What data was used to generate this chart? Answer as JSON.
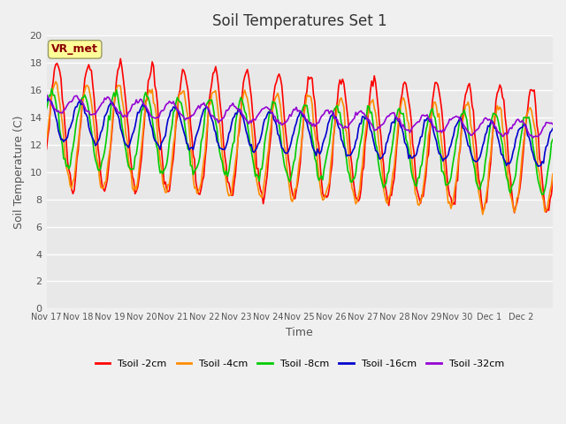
{
  "title": "Soil Temperatures Set 1",
  "xlabel": "Time",
  "ylabel": "Soil Temperature (C)",
  "ylim": [
    0,
    20
  ],
  "yticks": [
    0,
    2,
    4,
    6,
    8,
    10,
    12,
    14,
    16,
    18,
    20
  ],
  "x_labels": [
    "Nov 17",
    "Nov 18",
    "Nov 19",
    "Nov 20",
    "Nov 21",
    "Nov 22",
    "Nov 23",
    "Nov 24",
    "Nov 25",
    "Nov 26",
    "Nov 27",
    "Nov 28",
    "Nov 29",
    "Nov 30",
    "Dec 1",
    "Dec 2"
  ],
  "annotation_text": "VR_met",
  "annotation_color": "#8B0000",
  "annotation_bg": "#FFFF99",
  "plot_bg_color": "#E8E8E8",
  "fig_bg_color": "#F0F0F0",
  "series": [
    {
      "label": "Tsoil -2cm",
      "color": "#FF0000"
    },
    {
      "label": "Tsoil -4cm",
      "color": "#FF8C00"
    },
    {
      "label": "Tsoil -8cm",
      "color": "#00CC00"
    },
    {
      "label": "Tsoil -16cm",
      "color": "#0000CD"
    },
    {
      "label": "Tsoil -32cm",
      "color": "#9400D3"
    }
  ],
  "n_days": 16,
  "n_points": 384,
  "trend_rate": -0.12,
  "day_period": 1.0
}
